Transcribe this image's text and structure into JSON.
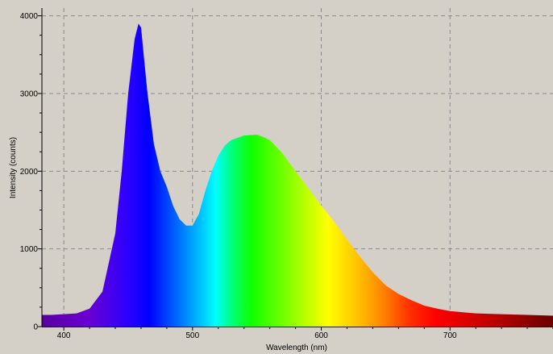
{
  "chart_data": {
    "type": "area",
    "title": "",
    "xlabel": "Wavelength (nm)",
    "ylabel": "Intensity (counts)",
    "xlim": [
      383,
      780
    ],
    "ylim": [
      0,
      4100
    ],
    "x_ticks": [
      400,
      500,
      600,
      700
    ],
    "y_ticks": [
      0,
      1000,
      2000,
      3000,
      4000
    ],
    "grid": true,
    "fill": "spectral (wavelength-colored)",
    "series": [
      {
        "x": [
          383,
          390,
          400,
          410,
          420,
          430,
          440,
          445,
          450,
          455,
          458,
          460,
          462,
          465,
          470,
          475,
          480,
          485,
          490,
          495,
          500,
          505,
          510,
          515,
          520,
          525,
          530,
          540,
          550,
          555,
          560,
          570,
          580,
          590,
          600,
          610,
          620,
          630,
          640,
          650,
          660,
          670,
          680,
          690,
          700,
          710,
          720,
          740,
          760,
          780
        ],
        "y": [
          150,
          150,
          160,
          170,
          230,
          450,
          1200,
          2000,
          3000,
          3700,
          3900,
          3850,
          3500,
          3000,
          2350,
          2000,
          1800,
          1550,
          1380,
          1300,
          1300,
          1450,
          1750,
          2000,
          2200,
          2330,
          2400,
          2460,
          2470,
          2440,
          2400,
          2230,
          2000,
          1780,
          1560,
          1350,
          1120,
          900,
          700,
          530,
          420,
          340,
          270,
          230,
          200,
          185,
          170,
          160,
          150,
          140
        ]
      }
    ]
  },
  "colors": {
    "background": "#d4d0c8",
    "grid": "#8a8a8a",
    "axis": "#000000"
  }
}
